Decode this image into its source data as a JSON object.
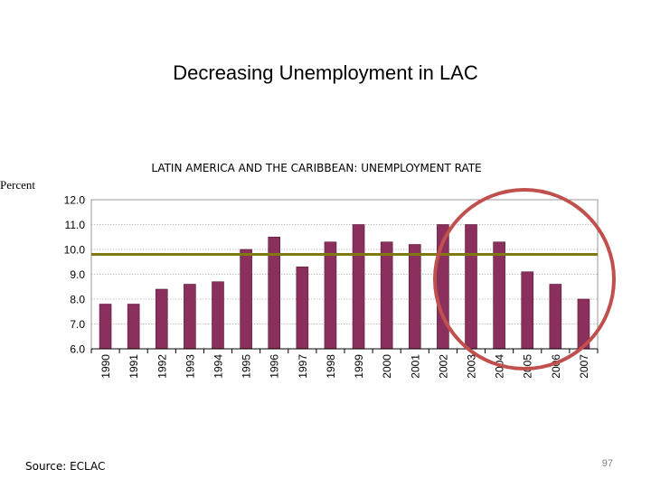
{
  "slide": {
    "title": "Decreasing Unemployment in LAC",
    "source": "Source: ECLAC",
    "page_number": "97"
  },
  "colors": {
    "bar": "#8b2f5c",
    "average_line": "#7f7a10",
    "highlight_circle": "#c0504d",
    "gridline": "#b0b0b0"
  },
  "chart_data": {
    "type": "bar",
    "title": "LATIN AMERICA AND THE CARIBBEAN: UNEMPLOYMENT RATE",
    "ylabel": "Percent",
    "xlabel": "",
    "categories": [
      "1990",
      "1991",
      "1992",
      "1993",
      "1994",
      "1995",
      "1996",
      "1997",
      "1998",
      "1999",
      "2000",
      "2001",
      "2002",
      "2003",
      "2004",
      "2005",
      "2006",
      "2007"
    ],
    "values": [
      7.8,
      7.8,
      8.4,
      8.6,
      8.7,
      10.0,
      10.5,
      9.3,
      10.3,
      11.0,
      10.3,
      10.2,
      11.0,
      11.0,
      10.3,
      9.1,
      8.6,
      8.0
    ],
    "yticks": [
      "6.0",
      "7.0",
      "8.0",
      "9.0",
      "10.0",
      "11.0",
      "12.0"
    ],
    "ylim": [
      6,
      12
    ],
    "reference_line": 9.8,
    "highlighted_range": [
      "2002",
      "2007"
    ],
    "grid": true,
    "legend": "none"
  }
}
